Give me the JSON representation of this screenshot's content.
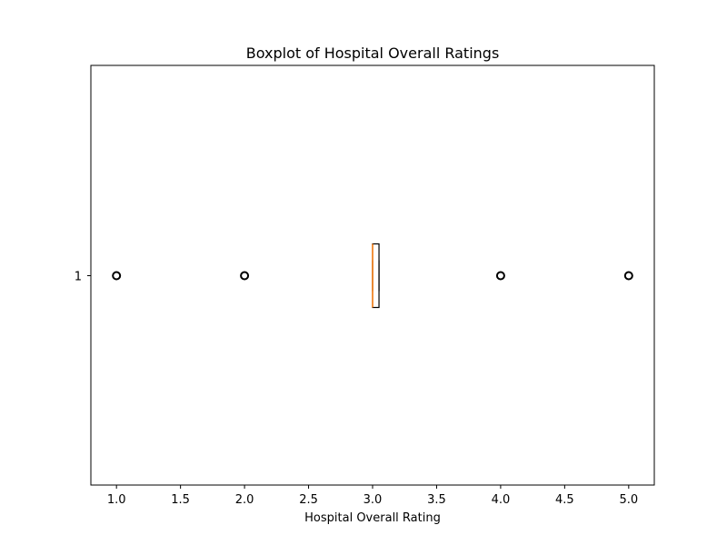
{
  "chart_data": {
    "type": "boxplot",
    "orientation": "horizontal",
    "title": "Boxplot of Hospital Overall Ratings",
    "xlabel": "Hospital Overall Rating",
    "ylabel": "",
    "xlim": [
      0.8,
      5.2
    ],
    "x_ticks": [
      1.0,
      1.5,
      2.0,
      2.5,
      3.0,
      3.5,
      4.0,
      4.5,
      5.0
    ],
    "x_tick_labels": [
      "1.0",
      "1.5",
      "2.0",
      "2.5",
      "3.0",
      "3.5",
      "4.0",
      "4.5",
      "5.0"
    ],
    "y_tick_labels": [
      "1"
    ],
    "grid": false,
    "boxes": [
      {
        "position": 1,
        "q1": 3.0,
        "median": 3.0,
        "q3": 3.05,
        "whisker_low": 3.0,
        "whisker_high": 3.05,
        "fliers": [
          1.0,
          2.0,
          4.0,
          5.0
        ]
      }
    ],
    "colors": {
      "box": "#000000",
      "median": "#ff7f0e",
      "flier": "#000000"
    }
  }
}
